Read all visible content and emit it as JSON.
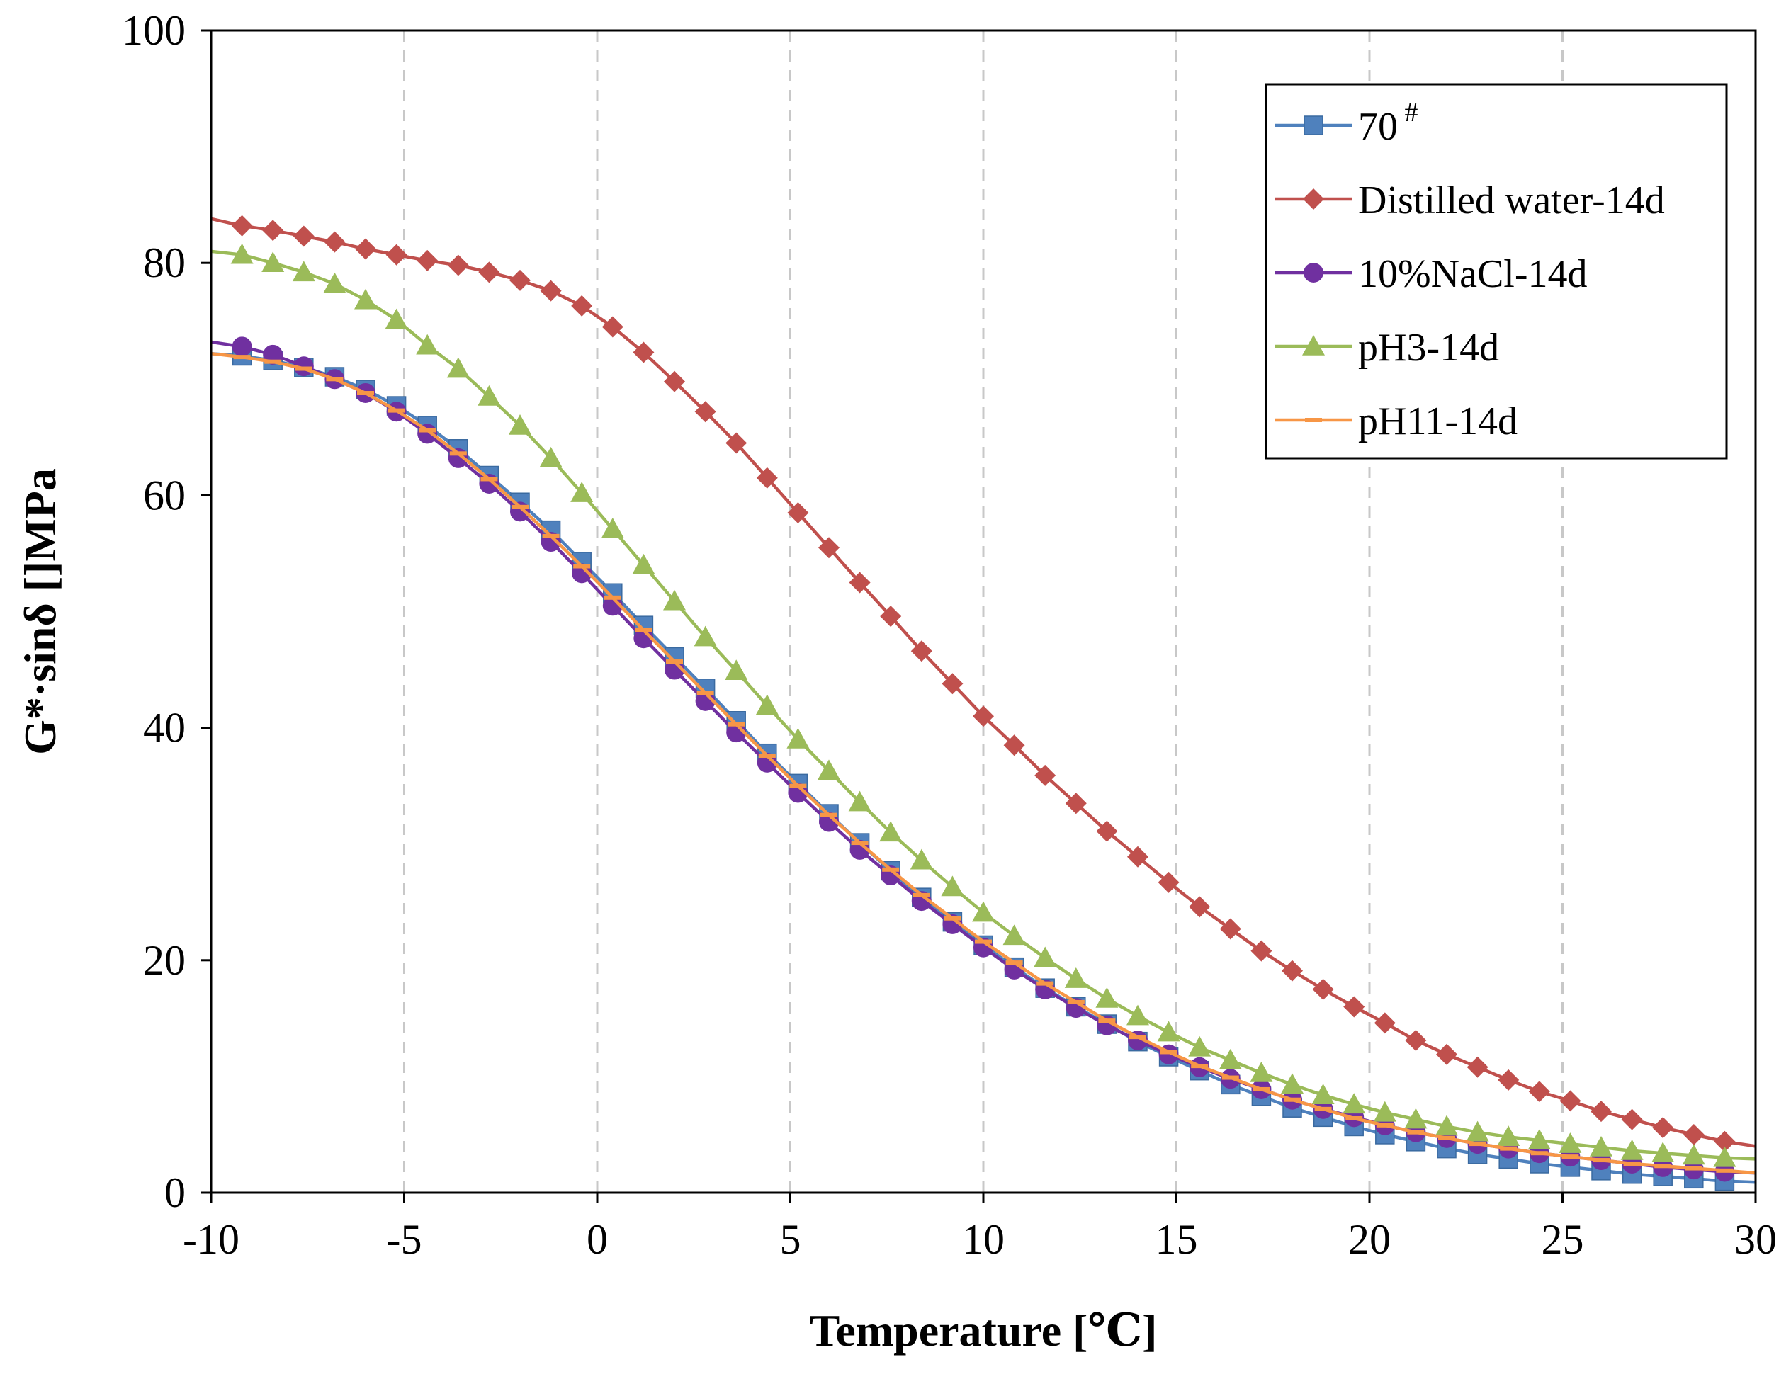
{
  "chart_data": {
    "type": "line",
    "title": "",
    "xlabel": "Temperature [℃]",
    "ylabel": "G*·sinδ []MPa",
    "xlim": [
      -10,
      30
    ],
    "ylim": [
      0,
      100
    ],
    "xticks": [
      -10,
      -5,
      0,
      5,
      10,
      15,
      20,
      25,
      30
    ],
    "yticks": [
      0,
      20,
      40,
      60,
      80,
      100
    ],
    "x_grid": "dashed vertical",
    "legend_position": "top-right",
    "x": [
      -10,
      -9.2,
      -8.4,
      -7.6,
      -6.8,
      -6.0,
      -5.2,
      -4.4,
      -3.6,
      -2.8,
      -2.0,
      -1.2,
      -0.4,
      0.4,
      1.2,
      2.0,
      2.8,
      3.6,
      4.4,
      5.2,
      6.0,
      6.8,
      7.6,
      8.4,
      9.2,
      10.0,
      10.8,
      11.6,
      12.4,
      13.2,
      14.0,
      14.8,
      15.6,
      16.4,
      17.2,
      18.0,
      18.8,
      19.6,
      20.4,
      21.2,
      22.0,
      22.8,
      23.6,
      24.4,
      25.2,
      26.0,
      26.8,
      27.6,
      28.4,
      29.2,
      30.0
    ],
    "series": [
      {
        "name": "70",
        "name_suffix": "#",
        "color": "#4f81bd",
        "marker": "square",
        "values": [
          72.2,
          72.0,
          71.6,
          71.0,
          70.2,
          69.1,
          67.7,
          66.0,
          64.0,
          61.7,
          59.4,
          57.0,
          54.3,
          51.6,
          48.8,
          46.1,
          43.4,
          40.6,
          37.8,
          35.2,
          32.6,
          30.1,
          27.7,
          25.4,
          23.3,
          21.3,
          19.4,
          17.6,
          16.0,
          14.5,
          13.0,
          11.7,
          10.5,
          9.3,
          8.3,
          7.3,
          6.5,
          5.7,
          5.0,
          4.4,
          3.8,
          3.3,
          2.9,
          2.5,
          2.2,
          1.9,
          1.6,
          1.4,
          1.2,
          1.0,
          0.9
        ],
        "marker_every": 1
      },
      {
        "name": "Distilled water-14d",
        "name_suffix": "",
        "color": "#c0504d",
        "marker": "diamond",
        "values": [
          83.8,
          83.2,
          82.8,
          82.3,
          81.8,
          81.2,
          80.7,
          80.2,
          79.8,
          79.2,
          78.5,
          77.6,
          76.3,
          74.5,
          72.3,
          69.8,
          67.2,
          64.5,
          61.5,
          58.5,
          55.5,
          52.5,
          49.6,
          46.6,
          43.8,
          41.0,
          38.5,
          35.9,
          33.5,
          31.1,
          28.9,
          26.7,
          24.6,
          22.7,
          20.8,
          19.1,
          17.5,
          16.0,
          14.6,
          13.1,
          11.9,
          10.8,
          9.7,
          8.7,
          7.9,
          7.0,
          6.3,
          5.6,
          5.0,
          4.4,
          4.0
        ],
        "marker_every": 1
      },
      {
        "name": "10%NaCl-14d",
        "name_suffix": "",
        "color": "#7030a0",
        "marker": "circle",
        "values": [
          73.2,
          72.8,
          72.1,
          71.1,
          70.0,
          68.8,
          67.2,
          65.3,
          63.2,
          61.0,
          58.6,
          56.0,
          53.3,
          50.5,
          47.7,
          45.0,
          42.3,
          39.6,
          37.0,
          34.4,
          31.9,
          29.5,
          27.3,
          25.1,
          23.1,
          21.1,
          19.2,
          17.5,
          15.9,
          14.4,
          13.1,
          11.9,
          10.8,
          9.8,
          8.9,
          8.0,
          7.2,
          6.5,
          5.8,
          5.2,
          4.7,
          4.2,
          3.8,
          3.4,
          3.1,
          2.8,
          2.5,
          2.2,
          2.0,
          1.8,
          1.7
        ],
        "marker_every": 1
      },
      {
        "name": "pH3-14d",
        "name_suffix": "",
        "color": "#9bbb59",
        "marker": "triangle",
        "values": [
          81.0,
          80.7,
          80.0,
          79.2,
          78.2,
          76.8,
          75.1,
          72.9,
          70.9,
          68.5,
          66.0,
          63.2,
          60.2,
          57.1,
          54.0,
          50.9,
          47.8,
          44.9,
          41.9,
          39.0,
          36.3,
          33.6,
          31.0,
          28.6,
          26.3,
          24.1,
          22.1,
          20.2,
          18.4,
          16.7,
          15.2,
          13.8,
          12.5,
          11.4,
          10.3,
          9.3,
          8.4,
          7.6,
          6.9,
          6.3,
          5.7,
          5.2,
          4.8,
          4.5,
          4.2,
          3.9,
          3.6,
          3.4,
          3.2,
          3.0,
          2.9
        ],
        "marker_every": 1
      },
      {
        "name": "pH11-14d",
        "name_suffix": "",
        "color": "#f79646",
        "marker": "dash",
        "values": [
          72.2,
          71.9,
          71.5,
          70.9,
          70.0,
          68.8,
          67.3,
          65.6,
          63.6,
          61.4,
          59.0,
          56.5,
          53.9,
          51.2,
          48.4,
          45.7,
          43.0,
          40.3,
          37.6,
          35.0,
          32.5,
          30.1,
          27.8,
          25.6,
          23.6,
          21.6,
          19.8,
          18.0,
          16.4,
          14.8,
          13.4,
          12.1,
          10.9,
          9.9,
          8.9,
          8.0,
          7.2,
          6.4,
          5.8,
          5.2,
          4.7,
          4.2,
          3.8,
          3.4,
          3.1,
          2.8,
          2.5,
          2.3,
          2.1,
          1.9,
          1.7
        ],
        "marker_every": 1
      }
    ]
  }
}
